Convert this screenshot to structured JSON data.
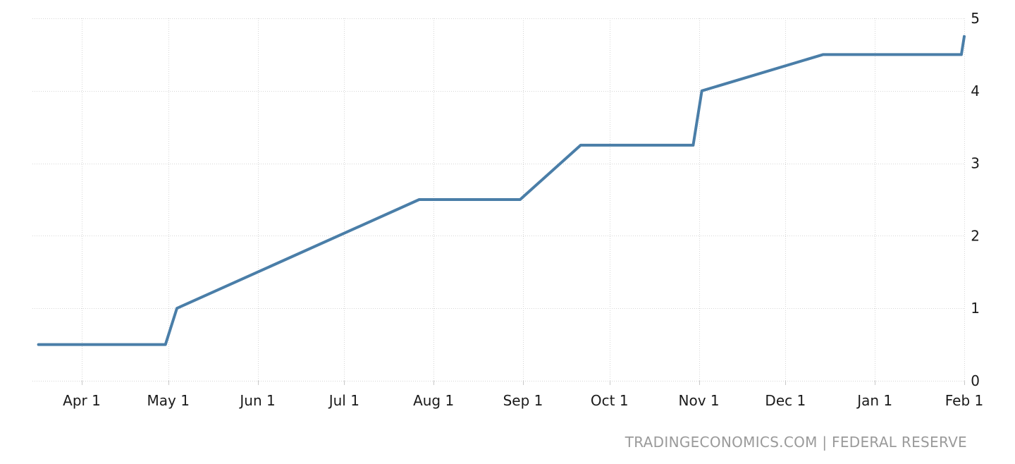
{
  "chart_data": {
    "type": "line",
    "title": "",
    "xlabel": "",
    "ylabel": "",
    "x_tick_labels": [
      "Apr 1",
      "May 1",
      "Jun 1",
      "Jul 1",
      "Aug 1",
      "Sep 1",
      "Oct 1",
      "Nov 1",
      "Dec 1",
      "Jan 1",
      "Feb 1"
    ],
    "y_tick_labels": [
      "0",
      "1",
      "2",
      "3",
      "4",
      "5"
    ],
    "ylim": [
      0,
      5
    ],
    "xlim": [
      "2022-03-17",
      "2023-02-01"
    ],
    "grid": true,
    "y_axis_position": "right",
    "series_color": "#4a7ea8",
    "series": [
      {
        "points": [
          {
            "x": "2022-03-17",
            "y": 0.5
          },
          {
            "x": "2022-04-30",
            "y": 0.5
          },
          {
            "x": "2022-05-04",
            "y": 1.0
          },
          {
            "x": "2022-07-27",
            "y": 2.5
          },
          {
            "x": "2022-08-31",
            "y": 2.5
          },
          {
            "x": "2022-09-21",
            "y": 3.25
          },
          {
            "x": "2022-10-30",
            "y": 3.25
          },
          {
            "x": "2022-11-02",
            "y": 4.0
          },
          {
            "x": "2022-12-14",
            "y": 4.5
          },
          {
            "x": "2023-01-31",
            "y": 4.5
          },
          {
            "x": "2023-02-01",
            "y": 4.75
          }
        ]
      }
    ]
  },
  "source_credit": "TRADINGECONOMICS.COM | FEDERAL RESERVE"
}
